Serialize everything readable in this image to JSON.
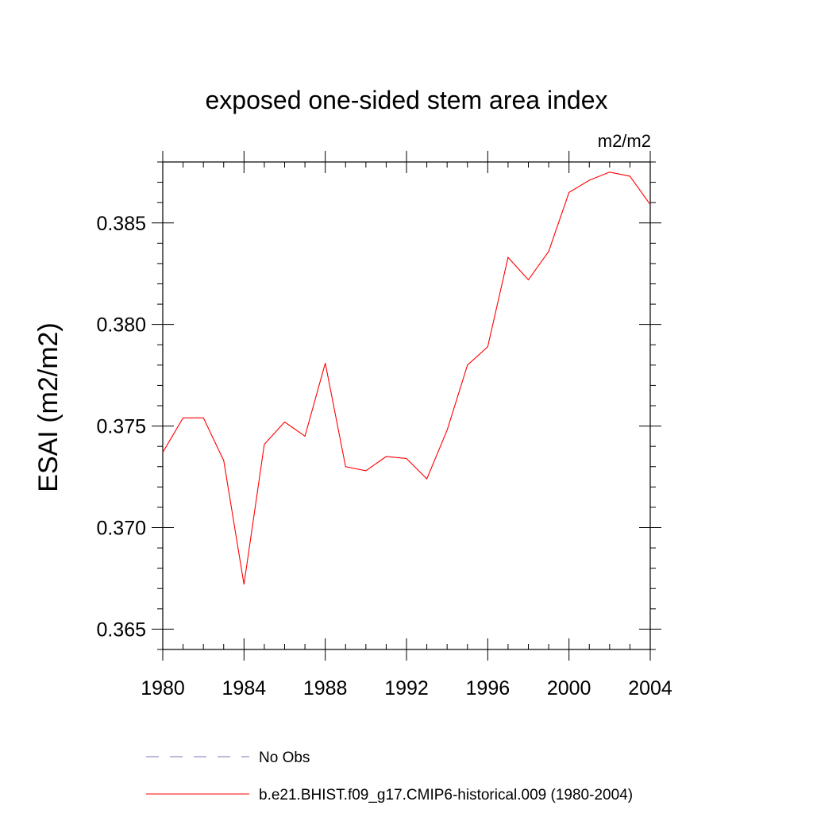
{
  "chart_data": {
    "type": "line",
    "title": "exposed one-sided stem area index",
    "units_label": "m2/m2",
    "xlabel": "",
    "ylabel": "ESAI  (m2/m2)",
    "xlim": [
      1980,
      2004
    ],
    "ylim": [
      0.364,
      0.388
    ],
    "x_ticks": [
      1980,
      1984,
      1988,
      1992,
      1996,
      2000,
      2004
    ],
    "x_tick_labels": [
      "1980",
      "1984",
      "1988",
      "1992",
      "1996",
      "2000",
      "2004"
    ],
    "y_ticks": [
      0.365,
      0.37,
      0.375,
      0.38,
      0.385
    ],
    "y_tick_labels": [
      "0.365",
      "0.370",
      "0.375",
      "0.380",
      "0.385"
    ],
    "grid": false,
    "legend_position": "bottom",
    "series": [
      {
        "name": "b.e21.BHIST.f09_g17.CMIP6-historical.009 (1980-2004)",
        "color": "#ff0000",
        "style": "solid",
        "x": [
          1980,
          1981,
          1982,
          1983,
          1984,
          1985,
          1986,
          1987,
          1988,
          1989,
          1990,
          1991,
          1992,
          1993,
          1994,
          1995,
          1996,
          1997,
          1998,
          1999,
          2000,
          2001,
          2002,
          2003,
          2004
        ],
        "y": [
          0.3737,
          0.3754,
          0.3754,
          0.3733,
          0.3672,
          0.3741,
          0.3752,
          0.3745,
          0.3781,
          0.373,
          0.3728,
          0.3735,
          0.3734,
          0.3724,
          0.3748,
          0.378,
          0.3789,
          0.3833,
          0.3822,
          0.3836,
          0.3865,
          0.3871,
          0.3875,
          0.3873,
          0.3859
        ]
      }
    ],
    "legend": [
      {
        "label": "No Obs",
        "color": "#7a73b8",
        "style": "dashed"
      },
      {
        "label": "b.e21.BHIST.f09_g17.CMIP6-historical.009 (1980-2004)",
        "color": "#ff0000",
        "style": "solid"
      }
    ]
  }
}
